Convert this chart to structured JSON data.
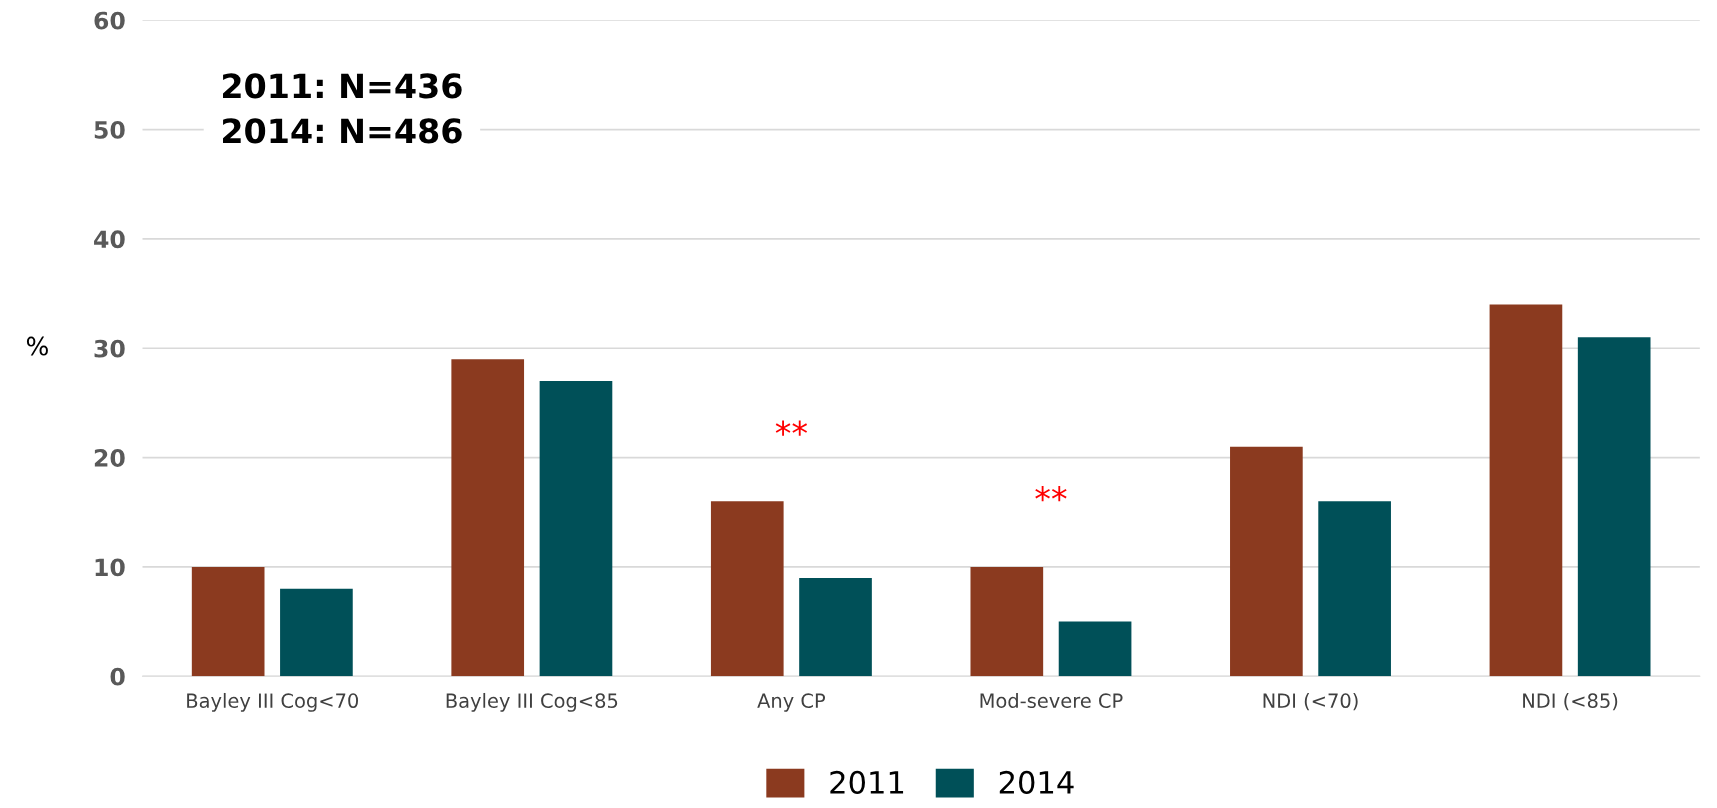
{
  "chart_data": {
    "type": "bar",
    "ylabel": "%",
    "categories": [
      "Bayley III Cog<70",
      "Bayley III Cog<85",
      "Any CP",
      "Mod-severe CP",
      "NDI (<70)",
      "NDI (<85)"
    ],
    "series": [
      {
        "name": "2011",
        "color": "#8b3a1f",
        "values": [
          10,
          29,
          16,
          10,
          21,
          34
        ]
      },
      {
        "name": "2014",
        "color": "#005058",
        "values": [
          8,
          27,
          9,
          5,
          16,
          31
        ]
      }
    ],
    "ylim": [
      0,
      60
    ],
    "yticks": [
      0,
      10,
      20,
      30,
      40,
      50,
      60
    ],
    "grid": "y",
    "legend": "bottom",
    "annotations": [
      "2011: N=436\n2014: N=486",
      "**",
      "**"
    ]
  }
}
